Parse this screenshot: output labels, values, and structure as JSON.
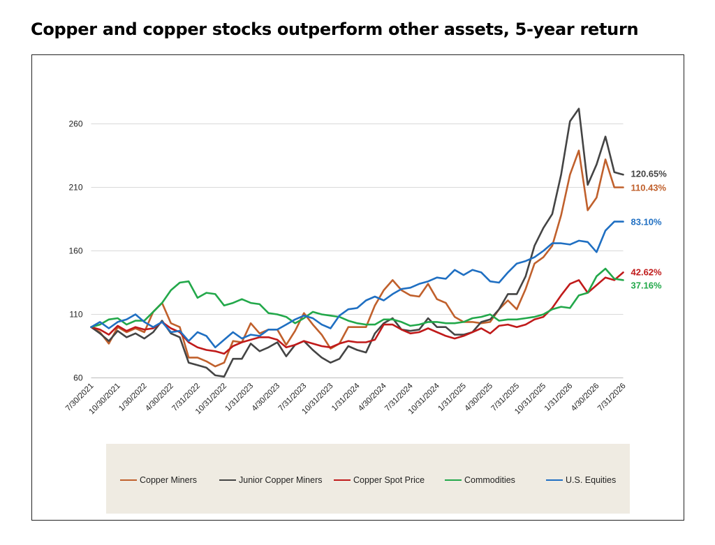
{
  "title": "Copper and copper stocks outperform other assets, 5-year return",
  "chart_data": {
    "type": "line",
    "title": "Copper and copper stocks outperform other assets, 5-year return",
    "xlabel": "",
    "ylabel": "",
    "ylim": [
      60,
      280
    ],
    "yticks": [
      60,
      110,
      160,
      210,
      260
    ],
    "x_tick_labels": [
      "7/30/2021",
      "10/30/2021",
      "1/30/2022",
      "4/30/2022",
      "7/31/2022",
      "10/31/2022",
      "1/31/2023",
      "4/30/2023",
      "7/31/2023",
      "10/31/2023",
      "1/31/2024",
      "4/30/2024",
      "7/31/2024",
      "10/31/2024",
      "1/31/2025",
      "4/30/2025",
      "7/31/2025",
      "10/31/2025",
      "1/31/2026",
      "4/30/2026",
      "7/31/2026"
    ],
    "grid": "horizontal",
    "legend_position": "bottom",
    "series": [
      {
        "name": "Copper Miners",
        "color": "#c0602c",
        "end_label": "110.43%",
        "values": [
          100,
          96,
          87,
          100,
          96,
          99,
          96,
          112,
          119,
          103,
          100,
          76,
          76,
          73,
          69,
          72,
          89,
          88,
          103,
          95,
          98,
          98,
          86,
          97,
          111,
          102,
          94,
          83,
          87,
          100,
          100,
          100,
          117,
          129,
          137,
          129,
          125,
          124,
          134,
          122,
          119,
          108,
          104,
          104,
          103,
          104,
          114,
          121,
          114,
          130,
          150,
          155,
          164,
          188,
          220,
          239,
          192,
          202,
          232,
          210,
          210
        ]
      },
      {
        "name": "Junior Copper Miners",
        "color": "#444444",
        "end_label": "120.65%",
        "values": [
          100,
          95,
          89,
          97,
          92,
          95,
          91,
          96,
          105,
          95,
          92,
          72,
          70,
          68,
          62,
          61,
          75,
          75,
          87,
          81,
          84,
          88,
          77,
          86,
          89,
          82,
          76,
          72,
          75,
          85,
          82,
          80,
          95,
          103,
          107,
          98,
          97,
          98,
          107,
          100,
          100,
          94,
          94,
          96,
          104,
          106,
          114,
          126,
          126,
          140,
          164,
          178,
          189,
          220,
          262,
          272,
          212,
          228,
          250,
          222,
          220
        ]
      },
      {
        "name": "Copper Spot Price",
        "color": "#c01a1a",
        "end_label": "42.62%",
        "values": [
          100,
          98,
          94,
          101,
          97,
          100,
          98,
          99,
          104,
          99,
          96,
          88,
          84,
          82,
          81,
          79,
          85,
          88,
          90,
          92,
          92,
          90,
          84,
          86,
          89,
          87,
          85,
          84,
          87,
          89,
          88,
          88,
          90,
          102,
          102,
          98,
          95,
          96,
          99,
          96,
          93,
          91,
          93,
          96,
          99,
          95,
          101,
          102,
          100,
          102,
          106,
          108,
          115,
          125,
          134,
          137,
          127,
          133,
          139,
          137,
          143
        ]
      },
      {
        "name": "Commodities",
        "color": "#22a84a",
        "end_label": "37.16%",
        "values": [
          100,
          102,
          106,
          107,
          102,
          105,
          105,
          112,
          119,
          129,
          135,
          136,
          123,
          127,
          126,
          117,
          119,
          122,
          119,
          118,
          111,
          110,
          108,
          103,
          107,
          112,
          110,
          109,
          108,
          105,
          103,
          102,
          102,
          106,
          106,
          104,
          101,
          102,
          104,
          104,
          103,
          103,
          104,
          107,
          108,
          110,
          105,
          106,
          106,
          107,
          108,
          110,
          114,
          116,
          115,
          125,
          127,
          140,
          146,
          138,
          137
        ]
      },
      {
        "name": "U.S. Equities",
        "color": "#1f6fc2",
        "end_label": "83.10%",
        "values": [
          100,
          104,
          99,
          104,
          106,
          110,
          104,
          100,
          104,
          96,
          97,
          89,
          96,
          93,
          84,
          90,
          96,
          91,
          94,
          93,
          98,
          98,
          102,
          106,
          109,
          107,
          102,
          99,
          109,
          114,
          115,
          121,
          124,
          121,
          126,
          130,
          131,
          134,
          136,
          139,
          138,
          145,
          141,
          145,
          143,
          136,
          135,
          143,
          150,
          152,
          155,
          160,
          166,
          166,
          165,
          168,
          167,
          159,
          176,
          183,
          183
        ]
      }
    ]
  }
}
